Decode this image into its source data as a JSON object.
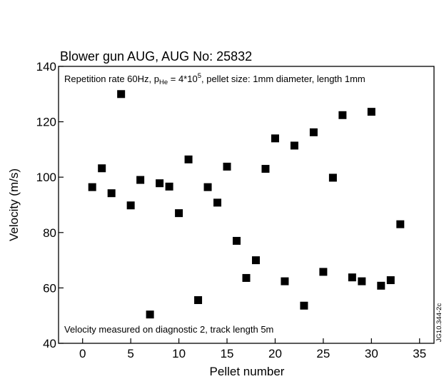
{
  "chart_data": {
    "type": "scatter",
    "title": "Blower gun AUG, AUG No: 25832",
    "subtitle": {
      "before": "Repetition rate 60Hz, p",
      "sub": "He",
      "mid": " = 4*10",
      "sup": "5",
      "after": ", pellet size: 1mm diameter, length 1mm"
    },
    "annotation": "Velocity measured on diagnostic 2, track length 5m",
    "side_label": "JG10.344-2c",
    "xlabel": "Pellet number",
    "ylabel": "Velocity (m/s)",
    "xlim": [
      -2.5,
      36.5
    ],
    "ylim": [
      40,
      140
    ],
    "xticks": [
      0,
      5,
      10,
      15,
      20,
      25,
      30,
      35
    ],
    "yticks": [
      40,
      60,
      80,
      100,
      120,
      140
    ],
    "grid": false,
    "marker": "square",
    "color": "#000000",
    "x": [
      1,
      2,
      3,
      4,
      5,
      6,
      7,
      8,
      9,
      10,
      11,
      12,
      13,
      14,
      15,
      16,
      17,
      18,
      19,
      20,
      21,
      22,
      23,
      24,
      25,
      26,
      27,
      28,
      29,
      30,
      31,
      32,
      33
    ],
    "y": [
      96.4,
      103.2,
      94.2,
      130.0,
      89.8,
      99.0,
      50.4,
      97.8,
      96.6,
      87.0,
      106.4,
      55.6,
      96.4,
      90.8,
      103.8,
      77.0,
      63.6,
      70.0,
      103.0,
      114.0,
      62.4,
      111.4,
      53.6,
      116.2,
      65.8,
      99.8,
      122.4,
      63.8,
      62.4,
      123.6,
      60.8,
      62.8,
      83.0
    ]
  }
}
